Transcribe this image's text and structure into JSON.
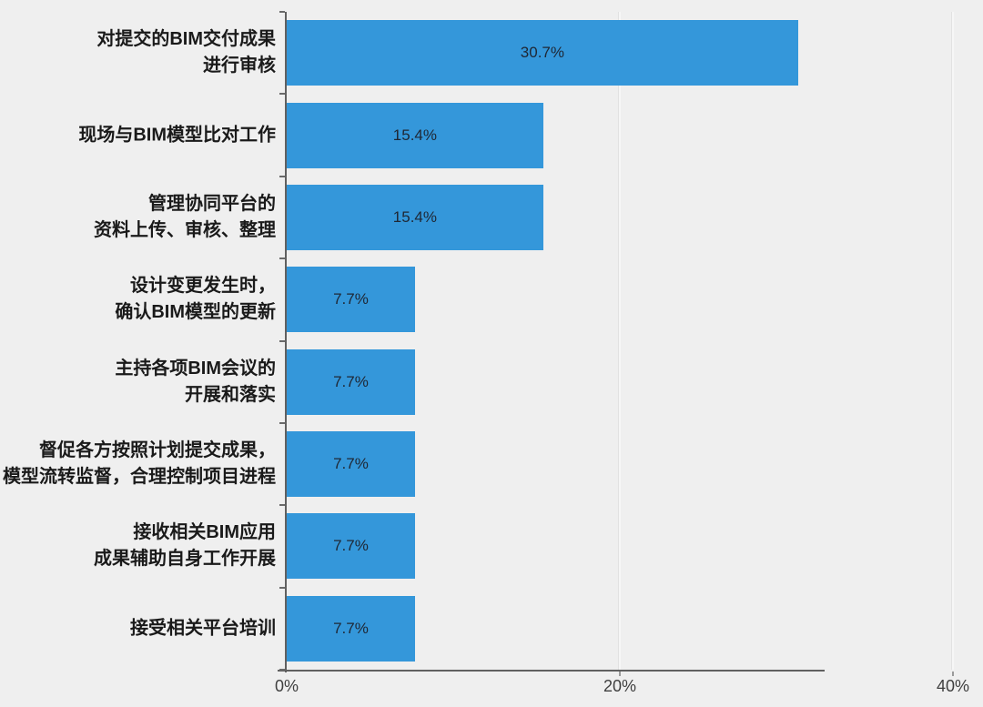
{
  "background_color": "#efefef",
  "chart_data": {
    "type": "bar",
    "orientation": "horizontal",
    "title": "",
    "xlabel": "",
    "ylabel": "",
    "xlim": [
      0,
      40
    ],
    "grid": "vertical gridlines at 20% and 40%, light on gray background",
    "legend": "none",
    "bar_color": "#3497da",
    "value_label_color": "#1f2734",
    "axis_color": "#606060",
    "category_label_color": "#1a1a1a",
    "x_ticks": [
      {
        "value": 0,
        "label": "0%"
      },
      {
        "value": 20,
        "label": "20%"
      },
      {
        "value": 40,
        "label": "40%"
      }
    ],
    "rows": [
      {
        "category_lines": [
          "对提交的BIM交付成果",
          "进行审核"
        ],
        "value": 30.7,
        "value_label": "30.7%"
      },
      {
        "category_lines": [
          "现场与BIM模型比对工作"
        ],
        "value": 15.4,
        "value_label": "15.4%"
      },
      {
        "category_lines": [
          "管理协同平台的",
          "资料上传、审核、整理"
        ],
        "value": 15.4,
        "value_label": "15.4%"
      },
      {
        "category_lines": [
          "设计变更发生时，",
          "确认BIM模型的更新"
        ],
        "value": 7.7,
        "value_label": "7.7%"
      },
      {
        "category_lines": [
          "主持各项BIM会议的",
          "开展和落实"
        ],
        "value": 7.7,
        "value_label": "7.7%"
      },
      {
        "category_lines": [
          "督促各方按照计划提交成果，",
          "模型流转监督，合理控制项目进程"
        ],
        "value": 7.7,
        "value_label": "7.7%"
      },
      {
        "category_lines": [
          "接收相关BIM应用",
          "成果辅助自身工作开展"
        ],
        "value": 7.7,
        "value_label": "7.7%"
      },
      {
        "category_lines": [
          "接受相关平台培训"
        ],
        "value": 7.7,
        "value_label": "7.7%"
      }
    ]
  }
}
